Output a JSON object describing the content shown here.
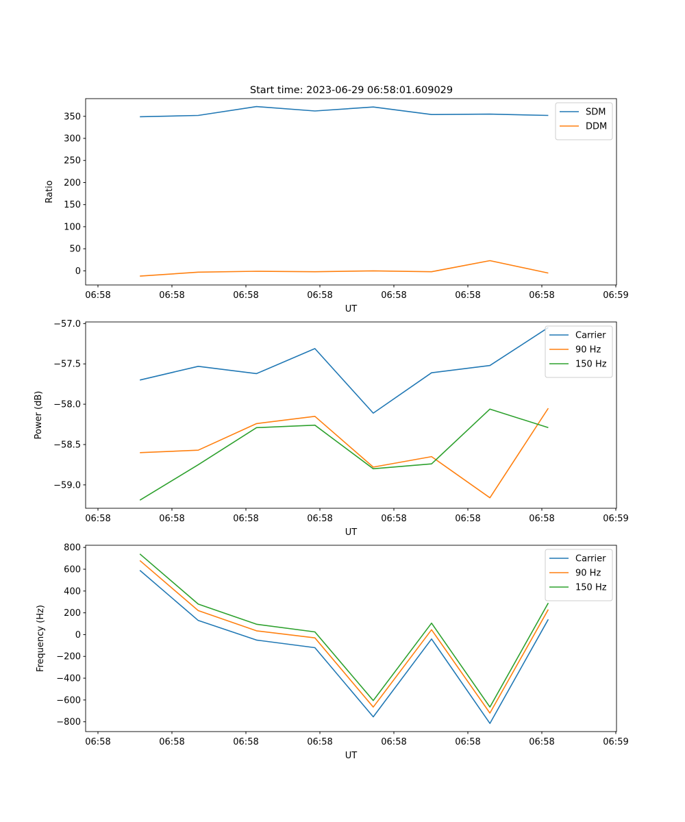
{
  "figure": {
    "title": "Start time: 2023-06-29 06:58:01.609029"
  },
  "chart_data": [
    {
      "type": "line",
      "xlabel": "UT",
      "ylabel": "Ratio",
      "x_tick_labels": [
        "06:58",
        "06:58",
        "06:58",
        "06:58",
        "06:58",
        "06:58",
        "06:58",
        "06:59"
      ],
      "x": [
        1,
        2,
        3,
        4,
        5,
        6,
        7,
        8
      ],
      "xlim": [
        0.07,
        9.17
      ],
      "ylim": [
        -32,
        390
      ],
      "y_ticks": [
        0,
        50,
        100,
        150,
        200,
        250,
        300,
        350
      ],
      "legend_position": "top-right",
      "series": [
        {
          "name": "SDM",
          "color": "#1f77b4",
          "values": [
            349,
            352,
            372,
            362,
            371,
            354,
            355,
            352
          ]
        },
        {
          "name": "DDM",
          "color": "#ff7f0e",
          "values": [
            -12,
            -3,
            -1,
            -2,
            0,
            -2,
            23,
            -5
          ]
        }
      ]
    },
    {
      "type": "line",
      "xlabel": "UT",
      "ylabel": "Power (dB)",
      "x_tick_labels": [
        "06:58",
        "06:58",
        "06:58",
        "06:58",
        "06:58",
        "06:58",
        "06:58",
        "06:59"
      ],
      "x": [
        1,
        2,
        3,
        4,
        5,
        6,
        7,
        8
      ],
      "xlim": [
        0.07,
        9.17
      ],
      "ylim": [
        -59.29,
        -56.98
      ],
      "y_ticks": [
        -59.0,
        -58.5,
        -58.0,
        -57.5,
        -57.0
      ],
      "legend_position": "top-right",
      "series": [
        {
          "name": "Carrier",
          "color": "#1f77b4",
          "values": [
            -57.7,
            -57.53,
            -57.62,
            -57.31,
            -58.11,
            -57.61,
            -57.52,
            -57.05
          ]
        },
        {
          "name": "90 Hz",
          "color": "#ff7f0e",
          "values": [
            -58.6,
            -58.57,
            -58.24,
            -58.15,
            -58.78,
            -58.65,
            -59.16,
            -58.05
          ]
        },
        {
          "name": "150 Hz",
          "color": "#2ca02c",
          "values": [
            -59.19,
            -58.75,
            -58.29,
            -58.26,
            -58.8,
            -58.74,
            -58.06,
            -58.29
          ]
        }
      ]
    },
    {
      "type": "line",
      "xlabel": "UT",
      "ylabel": "Frequency (Hz)",
      "x_tick_labels": [
        "06:58",
        "06:58",
        "06:58",
        "06:58",
        "06:58",
        "06:58",
        "06:58",
        "06:59"
      ],
      "x": [
        1,
        2,
        3,
        4,
        5,
        6,
        7,
        8
      ],
      "xlim": [
        0.07,
        9.17
      ],
      "ylim": [
        -890,
        820
      ],
      "y_ticks": [
        -800,
        -600,
        -400,
        -200,
        0,
        200,
        400,
        600,
        800
      ],
      "legend_position": "top-right",
      "series": [
        {
          "name": "Carrier",
          "color": "#1f77b4",
          "values": [
            590,
            130,
            -50,
            -120,
            -755,
            -40,
            -815,
            140
          ]
        },
        {
          "name": "90 Hz",
          "color": "#ff7f0e",
          "values": [
            680,
            220,
            35,
            -30,
            -665,
            45,
            -720,
            230
          ]
        },
        {
          "name": "150 Hz",
          "color": "#2ca02c",
          "values": [
            740,
            280,
            95,
            25,
            -605,
            105,
            -665,
            290
          ]
        }
      ]
    }
  ]
}
